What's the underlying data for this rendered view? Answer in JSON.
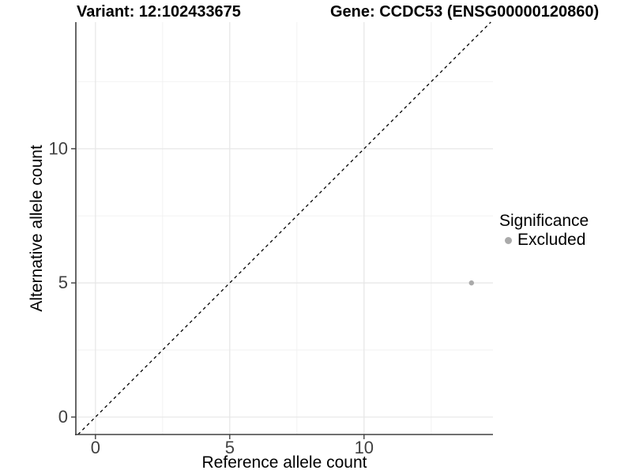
{
  "header": {
    "variant_title": "Variant: 12:102433675",
    "gene_title": "Gene: CCDC53 (ENSG00000120860)"
  },
  "chart_data": {
    "type": "scatter",
    "xlabel": "Reference allele count",
    "ylabel": "Alternative allele count",
    "xlim": [
      -0.73,
      14.8
    ],
    "ylim": [
      -0.65,
      14.72
    ],
    "x_ticks": [
      0,
      5,
      10
    ],
    "y_ticks": [
      0,
      5,
      10
    ],
    "x_minor_ticks": [
      2.5,
      7.5,
      12.5
    ],
    "y_minor_ticks": [
      2.5,
      7.5,
      12.5
    ],
    "grid": "major and minor gridlines, white background",
    "series": [
      {
        "name": "Excluded",
        "color": "#aaaaaa",
        "points": [
          {
            "x": 14,
            "y": 5
          }
        ]
      }
    ],
    "reference_line": {
      "type": "identity",
      "equation": "y = x",
      "style": "dashed",
      "color": "#000000"
    },
    "legend": {
      "position": "right",
      "title": "Significance",
      "entries": [
        {
          "label": "Excluded",
          "color": "#aaaaaa",
          "marker": "circle"
        }
      ]
    },
    "colors": {
      "grid_major": "#e6e6e6",
      "grid_minor": "#f2f2f2",
      "axis_line": "#404040",
      "tick_label": "#404040",
      "background": "#ffffff"
    }
  }
}
